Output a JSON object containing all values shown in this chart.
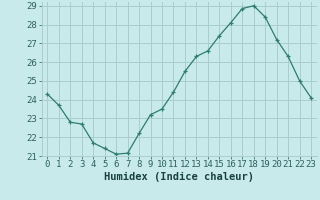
{
  "x": [
    0,
    1,
    2,
    3,
    4,
    5,
    6,
    7,
    8,
    9,
    10,
    11,
    12,
    13,
    14,
    15,
    16,
    17,
    18,
    19,
    20,
    21,
    22,
    23
  ],
  "y": [
    24.3,
    23.7,
    22.8,
    22.7,
    21.7,
    21.4,
    21.1,
    21.15,
    22.2,
    23.2,
    23.5,
    24.4,
    25.5,
    26.3,
    26.6,
    27.4,
    28.1,
    28.85,
    29.0,
    28.4,
    27.2,
    26.3,
    25.0,
    24.1
  ],
  "line_color": "#2e7d6e",
  "marker": "+",
  "bg_color": "#c8eaea",
  "grid_color": "#aacece",
  "xlabel": "Humidex (Indice chaleur)",
  "ylim": [
    21,
    29
  ],
  "xlim": [
    -0.5,
    23.5
  ],
  "yticks": [
    21,
    22,
    23,
    24,
    25,
    26,
    27,
    28,
    29
  ],
  "xticks": [
    0,
    1,
    2,
    3,
    4,
    5,
    6,
    7,
    8,
    9,
    10,
    11,
    12,
    13,
    14,
    15,
    16,
    17,
    18,
    19,
    20,
    21,
    22,
    23
  ],
  "tick_color": "#2e6060",
  "font_color": "#1a4040",
  "xlabel_fontsize": 7.5,
  "tick_fontsize": 6.5
}
